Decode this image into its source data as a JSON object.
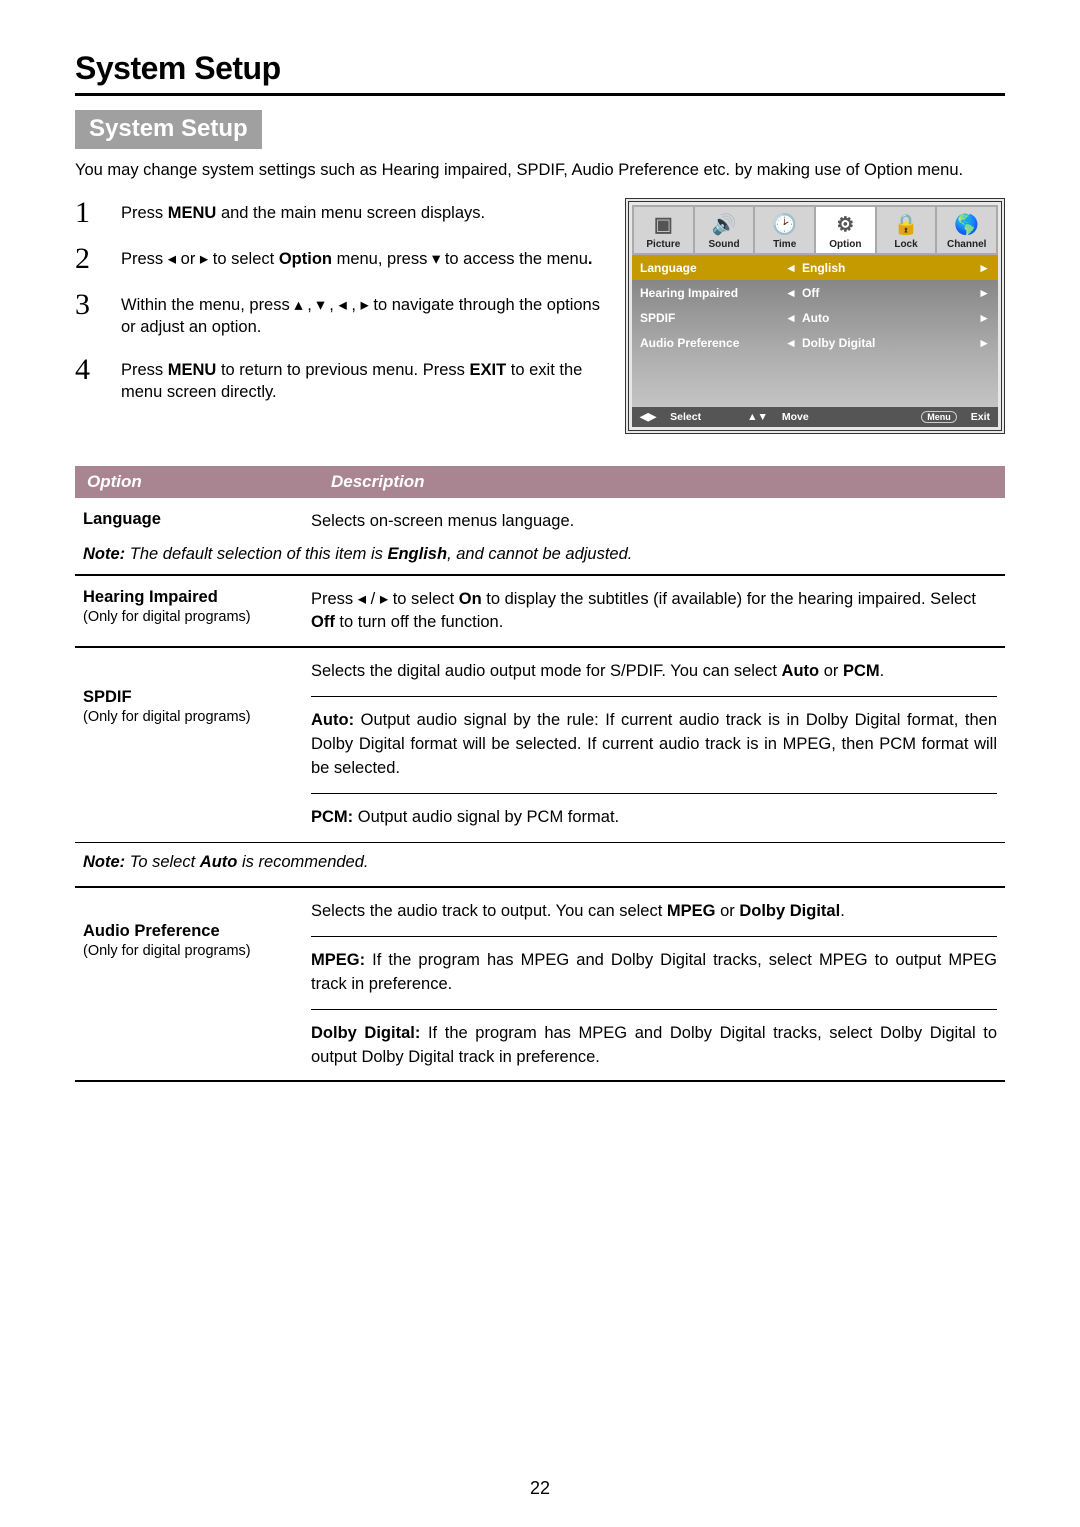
{
  "page_title": "System Setup",
  "section_badge": "System Setup",
  "intro": "You may change system settings such as Hearing impaired, SPDIF, Audio Preference etc. by making use of Option menu.",
  "steps": [
    {
      "num": "1",
      "text": "Press <b>MENU</b> and the main menu screen displays."
    },
    {
      "num": "2",
      "text": "Press <span class='arrow'>◂</span> or <span class='arrow'>▸</span> to select <b>Option</b> menu,  press <span class='arrow'>▾</span>  to access the menu<b>.</b>"
    },
    {
      "num": "3",
      "text": "Within the menu, press <span class='arrow'>▴</span> , <span class='arrow'>▾</span> , <span class='arrow'>◂</span> , <span class='arrow'>▸</span>  to navigate through the options or adjust an option."
    },
    {
      "num": "4",
      "text": "Press <b>MENU</b> to return to previous menu. Press <b>EXIT</b> to exit the menu screen directly."
    }
  ],
  "osd": {
    "tabs": [
      {
        "label": "Picture",
        "icon": "▣"
      },
      {
        "label": "Sound",
        "icon": "🔊"
      },
      {
        "label": "Time",
        "icon": "🕑"
      },
      {
        "label": "Option",
        "icon": "⚙"
      },
      {
        "label": "Lock",
        "icon": "🔒"
      },
      {
        "label": "Channel",
        "icon": "🌎"
      }
    ],
    "active_tab_index": 3,
    "rows": [
      {
        "label": "Language",
        "value": "English",
        "highlight": true
      },
      {
        "label": "Hearing Impaired",
        "value": "Off",
        "highlight": false
      },
      {
        "label": "SPDIF",
        "value": "Auto",
        "highlight": false
      },
      {
        "label": "Audio Preference",
        "value": "Dolby Digital",
        "highlight": false
      }
    ],
    "footer": {
      "select_icon": "◀▶",
      "select_label": "Select",
      "move_icon": "▲▼",
      "move_label": "Move",
      "exit_btn": "Menu",
      "exit_label": "Exit"
    }
  },
  "table": {
    "head_col1": "Option",
    "head_col2": "Description",
    "lang_option": "Language",
    "lang_desc": "Selects on-screen menus language.",
    "lang_note": "<b>Note:</b> The default selection of this item is <b>English</b>, and cannot be adjusted.",
    "hi_option": "Hearing Impaired",
    "hi_sub": "(Only for digital programs)",
    "hi_desc": "Press  <span class='arrow'>◂</span> / <span class='arrow'>▸</span>  to select <b>On</b> to display the subtitles (if available) for the hearing impaired. Select <b>Off</b> to turn off the function.",
    "spdif_option": "SPDIF",
    "spdif_sub": "(Only for digital programs)",
    "spdif_desc1": "Selects the digital audio output mode for S/PDIF. You can select <b>Auto</b> or <b>PCM</b>.",
    "spdif_desc2": "<b>Auto:</b> Output audio signal by the rule: If current audio track is in Dolby Digital format, then Dolby Digital format will be selected. If current audio track is in MPEG, then PCM format will be selected.",
    "spdif_desc3": "<b>PCM:</b> Output audio signal by PCM format.",
    "spdif_note": "<b>Note:</b> To select <b>Auto</b> is recommended.",
    "ap_option": "Audio Preference",
    "ap_sub": "(Only for digital programs)",
    "ap_desc1": "Selects the audio track to output. You can select <b>MPEG</b> or <b>Dolby Digital</b>.",
    "ap_desc2": "<b>MPEG:</b> If the program has MPEG and Dolby Digital tracks, select MPEG to output MPEG track in preference.",
    "ap_desc3": "<b>Dolby Digital:</b> If the program has MPEG and Dolby Digital tracks, select Dolby Digital to output Dolby Digital track in preference."
  },
  "page_number": "22",
  "colors": {
    "badge_bg": "#a0a0a0",
    "table_head_bg": "#a88590",
    "osd_highlight": "#c59a00"
  }
}
